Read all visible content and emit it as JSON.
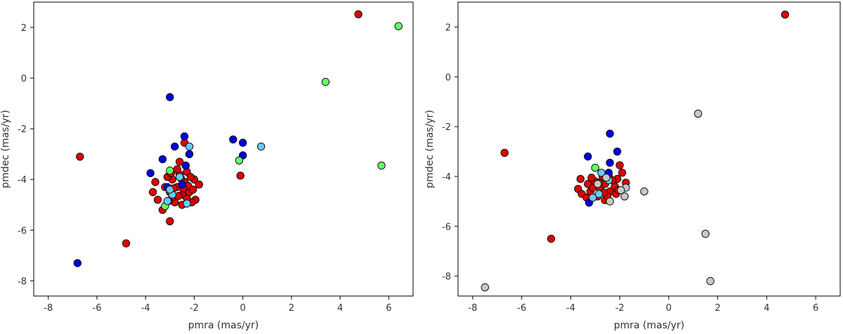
{
  "chart_data": [
    {
      "type": "scatter",
      "xlabel": "pmra (mas/yr)",
      "ylabel": "pmdec (mas/yr)",
      "xlim": [
        -8.6,
        7.0
      ],
      "ylim": [
        -8.6,
        3.0
      ],
      "xticks": [
        -8,
        -6,
        -4,
        -2,
        0,
        2,
        4,
        6
      ],
      "yticks": [
        -8,
        -6,
        -4,
        -2,
        0,
        2
      ],
      "tick_labels_x": [
        "-8",
        "-6",
        "-4",
        "-2",
        "0",
        "2",
        "4",
        "6"
      ],
      "tick_labels_y": [
        "-8",
        "-6",
        "-4",
        "-2",
        "0",
        "2"
      ],
      "grid": false,
      "series": [
        {
          "color": "#e00000",
          "points": [
            [
              4.75,
              2.52
            ],
            [
              -6.7,
              -3.1
            ],
            [
              -4.8,
              -6.52
            ],
            [
              -0.1,
              -3.85
            ],
            [
              -3.0,
              -5.65
            ],
            [
              -3.3,
              -5.2
            ],
            [
              -3.7,
              -4.5
            ],
            [
              -3.6,
              -4.1
            ],
            [
              -3.5,
              -4.8
            ],
            [
              -1.8,
              -4.2
            ],
            [
              -1.95,
              -4.8
            ],
            [
              -2.6,
              -3.3
            ],
            [
              -2.4,
              -2.55
            ],
            [
              -3.0,
              -4.5
            ],
            [
              -2.9,
              -4.0
            ],
            [
              -2.8,
              -4.9
            ],
            [
              -2.7,
              -4.3
            ],
            [
              -2.6,
              -3.8
            ],
            [
              -2.5,
              -4.6
            ],
            [
              -2.4,
              -4.1
            ],
            [
              -2.3,
              -3.7
            ],
            [
              -2.2,
              -4.5
            ],
            [
              -2.1,
              -4.9
            ],
            [
              -2.0,
              -4.0
            ],
            [
              -3.1,
              -3.9
            ],
            [
              -3.2,
              -4.3
            ],
            [
              -2.9,
              -4.7
            ],
            [
              -2.7,
              -3.6
            ],
            [
              -2.5,
              -5.0
            ],
            [
              -2.35,
              -3.45
            ],
            [
              -2.25,
              -4.25
            ],
            [
              -2.15,
              -3.9
            ],
            [
              -2.05,
              -4.4
            ],
            [
              -3.05,
              -4.85
            ],
            [
              -2.85,
              -4.35
            ],
            [
              -2.65,
              -4.65
            ],
            [
              -2.45,
              -4.35
            ],
            [
              -2.3,
              -4.75
            ],
            [
              -2.95,
              -3.75
            ],
            [
              -2.55,
              -3.95
            ]
          ]
        },
        {
          "color": "#0000dd",
          "points": [
            [
              -3.0,
              -0.75
            ],
            [
              -6.8,
              -7.3
            ],
            [
              -2.4,
              -2.3
            ],
            [
              -2.8,
              -2.7
            ],
            [
              -3.3,
              -3.2
            ],
            [
              -3.8,
              -3.75
            ],
            [
              -2.2,
              -3.0
            ],
            [
              -0.4,
              -2.42
            ],
            [
              0.0,
              -2.55
            ],
            [
              0.0,
              -3.05
            ],
            [
              -2.5,
              -4.2
            ],
            [
              -3.1,
              -4.3
            ],
            [
              -2.35,
              -3.45
            ]
          ]
        },
        {
          "color": "#66ff66",
          "points": [
            [
              6.4,
              2.05
            ],
            [
              3.4,
              -0.15
            ],
            [
              5.7,
              -3.45
            ],
            [
              -0.15,
              -3.25
            ],
            [
              -3.0,
              -3.65
            ],
            [
              -3.2,
              -5.05
            ]
          ]
        },
        {
          "color": "#66ccff",
          "points": [
            [
              0.75,
              -2.7
            ],
            [
              -2.2,
              -2.7
            ],
            [
              -2.6,
              -3.9
            ],
            [
              -3.1,
              -4.85
            ],
            [
              -2.9,
              -4.6
            ],
            [
              -2.3,
              -4.95
            ],
            [
              -3.0,
              -4.4
            ]
          ]
        }
      ]
    },
    {
      "type": "scatter",
      "xlabel": "pmra (mas/yr)",
      "ylabel": "pmdec (mas/yr)",
      "xlim": [
        -8.6,
        7.0
      ],
      "ylim": [
        -8.8,
        3.0
      ],
      "xticks": [
        -8,
        -6,
        -4,
        -2,
        0,
        2,
        4,
        6
      ],
      "yticks": [
        -8,
        -6,
        -4,
        -2,
        0,
        2
      ],
      "tick_labels_x": [
        "-8",
        "-6",
        "-4",
        "-2",
        "0",
        "2",
        "4",
        "6"
      ],
      "tick_labels_y": [
        "-8",
        "-6",
        "-4",
        "-2",
        "0",
        "2"
      ],
      "grid": false,
      "series": [
        {
          "color": "#e00000",
          "points": [
            [
              4.75,
              2.5
            ],
            [
              -6.7,
              -3.05
            ],
            [
              -4.8,
              -6.5
            ],
            [
              -3.6,
              -4.1
            ],
            [
              -3.7,
              -4.5
            ],
            [
              -3.55,
              -4.7
            ],
            [
              -2.0,
              -3.55
            ],
            [
              -1.9,
              -3.85
            ],
            [
              -1.75,
              -4.25
            ],
            [
              -2.6,
              -4.95
            ],
            [
              -3.0,
              -4.2
            ],
            [
              -2.8,
              -4.5
            ],
            [
              -2.6,
              -4.3
            ],
            [
              -2.4,
              -4.6
            ],
            [
              -2.2,
              -4.4
            ],
            [
              -2.1,
              -4.1
            ],
            [
              -2.9,
              -4.8
            ],
            [
              -3.2,
              -4.6
            ],
            [
              -3.3,
              -4.3
            ],
            [
              -2.7,
              -4.0
            ],
            [
              -2.5,
              -4.8
            ],
            [
              -2.3,
              -4.15
            ],
            [
              -3.1,
              -4.45
            ],
            [
              -2.15,
              -4.7
            ],
            [
              -2.45,
              -3.95
            ],
            [
              -2.85,
              -4.25
            ],
            [
              -3.35,
              -4.85
            ],
            [
              -2.05,
              -4.55
            ],
            [
              -2.65,
              -4.65
            ],
            [
              -3.15,
              -4.05
            ]
          ]
        },
        {
          "color": "#0000dd",
          "points": [
            [
              -2.4,
              -2.28
            ],
            [
              -2.1,
              -3.0
            ],
            [
              -3.3,
              -3.2
            ],
            [
              -2.4,
              -3.45
            ],
            [
              -3.25,
              -5.05
            ],
            [
              -2.45,
              -3.85
            ]
          ]
        },
        {
          "color": "#66ff66",
          "points": [
            [
              -3.0,
              -3.65
            ]
          ]
        },
        {
          "color": "#66ccff",
          "points": [
            [
              -2.75,
              -3.85
            ],
            [
              -2.45,
              -4.15
            ],
            [
              -3.1,
              -4.85
            ],
            [
              -2.85,
              -4.7
            ]
          ]
        },
        {
          "color": "#c8c8c8",
          "points": [
            [
              -7.5,
              -8.45
            ],
            [
              1.2,
              -1.48
            ],
            [
              -1.0,
              -4.6
            ],
            [
              1.5,
              -6.3
            ],
            [
              1.7,
              -8.2
            ],
            [
              -1.8,
              -4.8
            ],
            [
              -1.75,
              -4.45
            ],
            [
              -1.95,
              -4.55
            ],
            [
              -2.4,
              -5.0
            ],
            [
              -2.9,
              -4.3
            ],
            [
              -2.55,
              -4.05
            ]
          ]
        }
      ]
    }
  ]
}
